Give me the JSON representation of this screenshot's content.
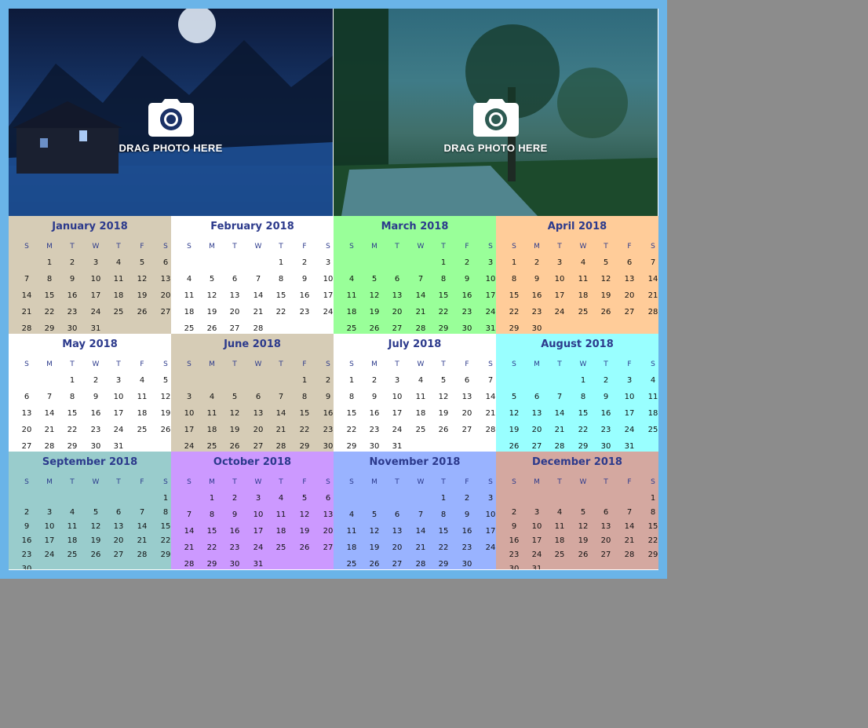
{
  "photos": [
    {
      "label": "DRAG PHOTO HERE",
      "icon": "camera-icon",
      "scene": "night-cabin"
    },
    {
      "label": "DRAG PHOTO HERE",
      "icon": "camera-icon",
      "scene": "tree-river"
    }
  ],
  "weekdays": [
    "S",
    "M",
    "T",
    "W",
    "T",
    "F",
    "S"
  ],
  "months": [
    {
      "title": "January 2018",
      "color": "#d6ccb6",
      "offset": 1,
      "days": 31
    },
    {
      "title": "February 2018",
      "color": "#ffffff",
      "offset": 4,
      "days": 28
    },
    {
      "title": "March 2018",
      "color": "#99ff99",
      "offset": 4,
      "days": 31
    },
    {
      "title": "April 2018",
      "color": "#ffcc99",
      "offset": 0,
      "days": 30
    },
    {
      "title": "May 2018",
      "color": "#ffffff",
      "offset": 2,
      "days": 31
    },
    {
      "title": "June 2018",
      "color": "#d6ccb6",
      "offset": 5,
      "days": 30
    },
    {
      "title": "July 2018",
      "color": "#ffffff",
      "offset": 0,
      "days": 31
    },
    {
      "title": "August 2018",
      "color": "#99ffff",
      "offset": 3,
      "days": 31
    },
    {
      "title": "September 2018",
      "color": "#99cccc",
      "offset": 6,
      "days": 30
    },
    {
      "title": "October 2018",
      "color": "#cc99ff",
      "offset": 1,
      "days": 31
    },
    {
      "title": "November 2018",
      "color": "#99b3ff",
      "offset": 4,
      "days": 30
    },
    {
      "title": "December 2018",
      "color": "#d4a8a0",
      "offset": 6,
      "days": 31
    }
  ]
}
